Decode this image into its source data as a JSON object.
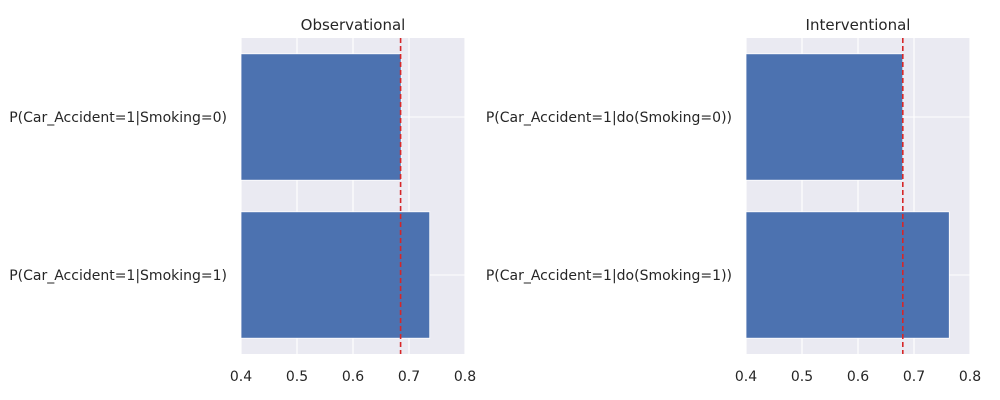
{
  "chart_data": [
    {
      "type": "bar",
      "orientation": "horizontal",
      "title": "Observational",
      "categories": [
        "P(Car_Accident=1|Smoking=0)",
        "P(Car_Accident=1|Smoking=1)"
      ],
      "values": [
        0.686,
        0.737
      ],
      "xlim": [
        0.4,
        0.8
      ],
      "xticks": [
        "0.4",
        "0.5",
        "0.6",
        "0.7",
        "0.8"
      ],
      "reference_line": 0.685,
      "grid": true,
      "bar_color": "#4c72b0",
      "line_color": "#d62728",
      "background": "#eaeaf2"
    },
    {
      "type": "bar",
      "orientation": "horizontal",
      "title": "Interventional",
      "categories": [
        "P(Car_Accident=1|do(Smoking=0))",
        "P(Car_Accident=1|do(Smoking=1))"
      ],
      "values": [
        0.68,
        0.763
      ],
      "xlim": [
        0.4,
        0.8
      ],
      "xticks": [
        "0.4",
        "0.5",
        "0.6",
        "0.7",
        "0.8"
      ],
      "reference_line": 0.68,
      "grid": true,
      "bar_color": "#4c72b0",
      "line_color": "#d62728",
      "background": "#eaeaf2"
    }
  ]
}
